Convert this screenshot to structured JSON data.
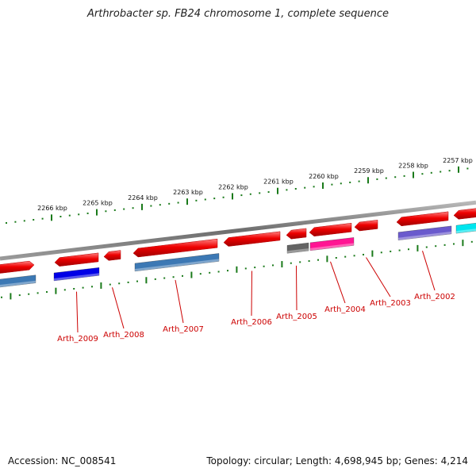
{
  "title": "Arthrobacter sp. FB24 chromosome 1, complete sequence",
  "footer": {
    "accession": "Accession: NC_008541",
    "summary": "Topology: circular; Length: 4,698,945 bp; Genes: 4,214"
  },
  "colors": {
    "backbone": "#7a7a7a",
    "tick": "#1a7a1a",
    "gene_red": "#ee0000",
    "label_red": "#cc0000",
    "steel_blue": "#3c78b4",
    "blue": "#0000e6",
    "gray": "#646464",
    "magenta": "#ff1493",
    "purple": "#6a5acd",
    "cyan": "#00e5ee"
  },
  "kbp_labels": [
    "2266 kbp",
    "2265 kbp",
    "2264 kbp",
    "2263 kbp",
    "2262 kbp",
    "2261 kbp",
    "2260 kbp",
    "2259 kbp",
    "2258 kbp",
    "2257 kbp"
  ],
  "genes": [
    {
      "label": "",
      "color": "gene_red",
      "dir": "fwd"
    },
    {
      "label": "Arth_2009",
      "color": "gene_red",
      "dir": "rev"
    },
    {
      "label": "Arth_2008",
      "color": "gene_red",
      "dir": "rev"
    },
    {
      "label": "Arth_2007",
      "color": "gene_red",
      "dir": "rev"
    },
    {
      "label": "Arth_2006",
      "color": "gene_red",
      "dir": "rev"
    },
    {
      "label": "Arth_2005",
      "color": "gene_red",
      "dir": "rev"
    },
    {
      "label": "Arth_2004",
      "color": "gene_red",
      "dir": "rev"
    },
    {
      "label": "Arth_2003",
      "color": "gene_red",
      "dir": "rev"
    },
    {
      "label": "Arth_2002",
      "color": "gene_red",
      "dir": "rev"
    },
    {
      "label": "",
      "color": "gene_red",
      "dir": "rev"
    }
  ],
  "features": [
    {
      "color": "steel_blue"
    },
    {
      "color": "blue"
    },
    {
      "color": "steel_blue"
    },
    {
      "color": "gray"
    },
    {
      "color": "magenta"
    },
    {
      "color": "purple"
    },
    {
      "color": "cyan"
    }
  ]
}
